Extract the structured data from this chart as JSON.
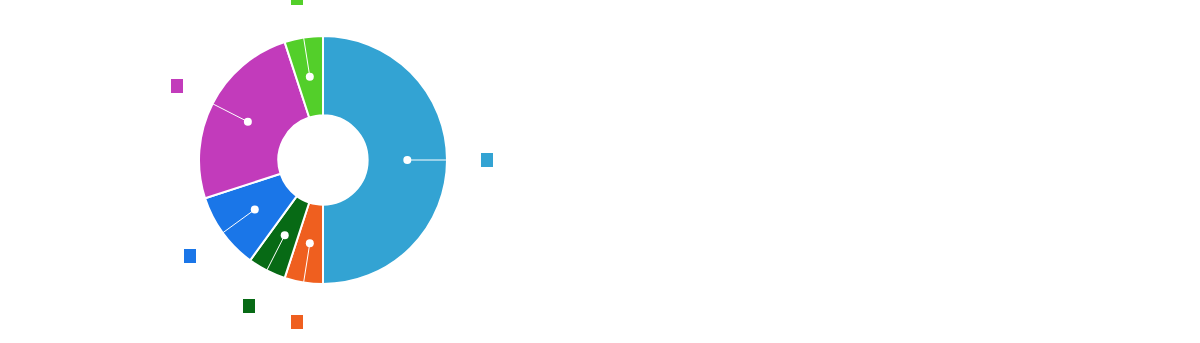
{
  "chart_data": {
    "type": "donut",
    "categories": [
      null,
      null,
      null,
      null,
      null,
      null
    ],
    "values": [
      50,
      5,
      5,
      10,
      25,
      5
    ],
    "colors": [
      "#33a3d3",
      "#ef5f1f",
      "#076a15",
      "#1a76e8",
      "#c23bbb",
      "#53cf2a"
    ],
    "legend": false
  }
}
